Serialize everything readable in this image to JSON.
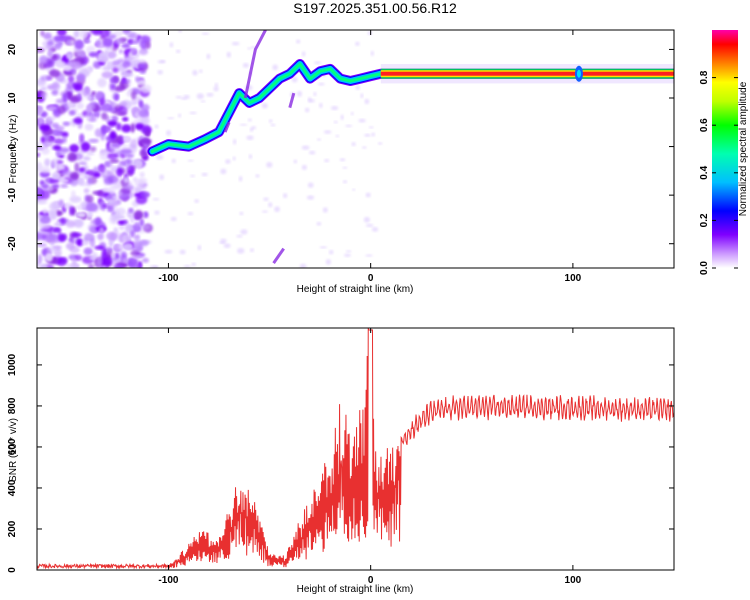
{
  "title": "S197.2025.351.00.56.R12",
  "chart_data": [
    {
      "type": "heatmap",
      "xlabel": "Height of straight line (km)",
      "ylabel": "Frequency (Hz)",
      "xlim": [
        -165,
        150
      ],
      "ylim": [
        -25,
        24
      ],
      "x_ticks": [
        -100,
        0,
        100
      ],
      "y_ticks": [
        -20,
        -10,
        0,
        10,
        20
      ],
      "colorbar": {
        "label": "Normalized spectral amplitude",
        "range": [
          0,
          1
        ],
        "ticks": [
          "0.0",
          "0.2",
          "0.4",
          "0.6",
          "0.8"
        ]
      },
      "ridge": [
        {
          "x": -108,
          "y": -1
        },
        {
          "x": -100,
          "y": 0.5
        },
        {
          "x": -90,
          "y": 0
        },
        {
          "x": -82,
          "y": 1.5
        },
        {
          "x": -75,
          "y": 3
        },
        {
          "x": -70,
          "y": 7
        },
        {
          "x": -65,
          "y": 11
        },
        {
          "x": -60,
          "y": 9
        },
        {
          "x": -55,
          "y": 10
        },
        {
          "x": -50,
          "y": 12
        },
        {
          "x": -45,
          "y": 14
        },
        {
          "x": -40,
          "y": 15
        },
        {
          "x": -35,
          "y": 17
        },
        {
          "x": -30,
          "y": 14
        },
        {
          "x": -25,
          "y": 15.5
        },
        {
          "x": -20,
          "y": 16
        },
        {
          "x": -15,
          "y": 14
        },
        {
          "x": -10,
          "y": 13.5
        },
        {
          "x": -5,
          "y": 14
        },
        {
          "x": 0,
          "y": 14.5
        },
        {
          "x": 5,
          "y": 15
        },
        {
          "x": 50,
          "y": 15
        },
        {
          "x": 100,
          "y": 15
        },
        {
          "x": 150,
          "y": 15
        }
      ]
    },
    {
      "type": "line",
      "xlabel": "Height of straight line (km)",
      "ylabel": "SNR (10 * v/v)",
      "xlim": [
        -165,
        150
      ],
      "ylim": [
        0,
        1180
      ],
      "x_ticks": [
        -100,
        0,
        100
      ],
      "y_ticks": [
        0,
        200,
        400,
        600,
        800,
        1000
      ],
      "color": "#e83030",
      "envelope": [
        {
          "x": -165,
          "y": 20
        },
        {
          "x": -100,
          "y": 20
        },
        {
          "x": -92,
          "y": 90
        },
        {
          "x": -85,
          "y": 180
        },
        {
          "x": -75,
          "y": 130
        },
        {
          "x": -65,
          "y": 400
        },
        {
          "x": -58,
          "y": 300
        },
        {
          "x": -50,
          "y": 80
        },
        {
          "x": -42,
          "y": 60
        },
        {
          "x": -38,
          "y": 150
        },
        {
          "x": -30,
          "y": 300
        },
        {
          "x": -20,
          "y": 500
        },
        {
          "x": -15,
          "y": 700
        },
        {
          "x": -8,
          "y": 550
        },
        {
          "x": -3,
          "y": 750
        },
        {
          "x": 0,
          "y": 1170
        },
        {
          "x": 2,
          "y": 500
        },
        {
          "x": 8,
          "y": 500
        },
        {
          "x": 15,
          "y": 650
        },
        {
          "x": 22,
          "y": 720
        },
        {
          "x": 30,
          "y": 790
        },
        {
          "x": 40,
          "y": 810
        },
        {
          "x": 60,
          "y": 815
        },
        {
          "x": 100,
          "y": 810
        },
        {
          "x": 150,
          "y": 800
        }
      ]
    }
  ]
}
